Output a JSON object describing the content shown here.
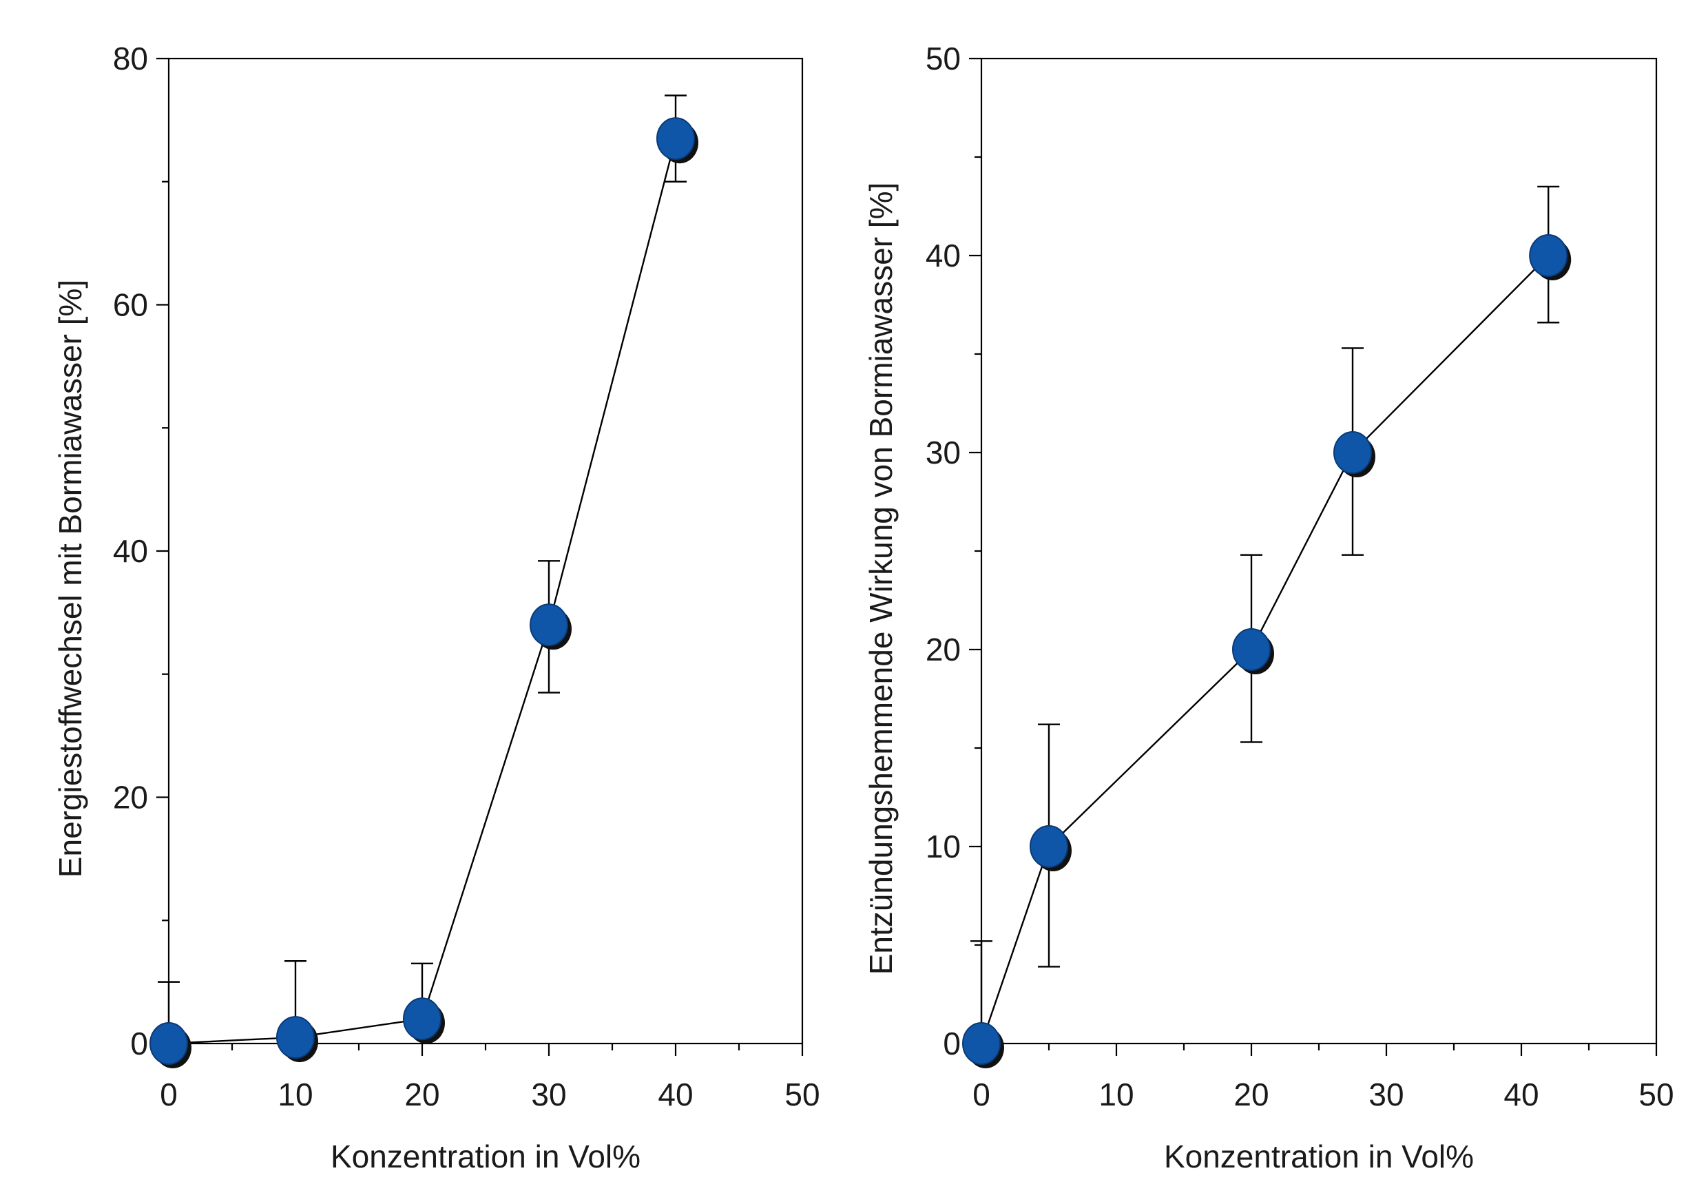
{
  "chart_data": [
    {
      "type": "scatter",
      "xlabel": "Konzentration in Vol%",
      "ylabel": "Energiestoffwechsel mit Bormiawasser [%]",
      "xlim": [
        0,
        50
      ],
      "ylim": [
        0,
        80
      ],
      "x_ticks": [
        "0",
        "10",
        "20",
        "30",
        "40",
        "50"
      ],
      "y_ticks": [
        "0",
        "20",
        "40",
        "60",
        "80"
      ],
      "connected": true,
      "grid": false,
      "series": [
        {
          "x": [
            0,
            10,
            20,
            30,
            40
          ],
          "y": [
            0,
            0.5,
            2,
            34,
            73.5
          ],
          "err_upper": [
            5,
            6.7,
            6.5,
            39.2,
            77
          ],
          "err_lower": [
            null,
            null,
            null,
            28.5,
            70
          ]
        }
      ]
    },
    {
      "type": "scatter",
      "xlabel": "Konzentration in Vol%",
      "ylabel": "Entzündungshemmende Wirkung von Bormiawasser [%]",
      "xlim": [
        0,
        50
      ],
      "ylim": [
        0,
        50
      ],
      "x_ticks": [
        "0",
        "10",
        "20",
        "30",
        "40",
        "50"
      ],
      "y_ticks": [
        "0",
        "10",
        "20",
        "30",
        "40",
        "50"
      ],
      "connected": true,
      "grid": false,
      "series": [
        {
          "x": [
            0,
            5,
            20,
            27.5,
            42
          ],
          "y": [
            0,
            10,
            20,
            30,
            40
          ],
          "err_upper": [
            5.2,
            16.2,
            24.8,
            35.3,
            43.5
          ],
          "err_lower": [
            null,
            3.9,
            15.3,
            24.8,
            36.6
          ]
        }
      ]
    }
  ],
  "colors": {
    "marker_fill": "#0f56a8",
    "marker_edge": "#0a3a78",
    "marker_shadow": "#111111",
    "line": "#000000"
  }
}
